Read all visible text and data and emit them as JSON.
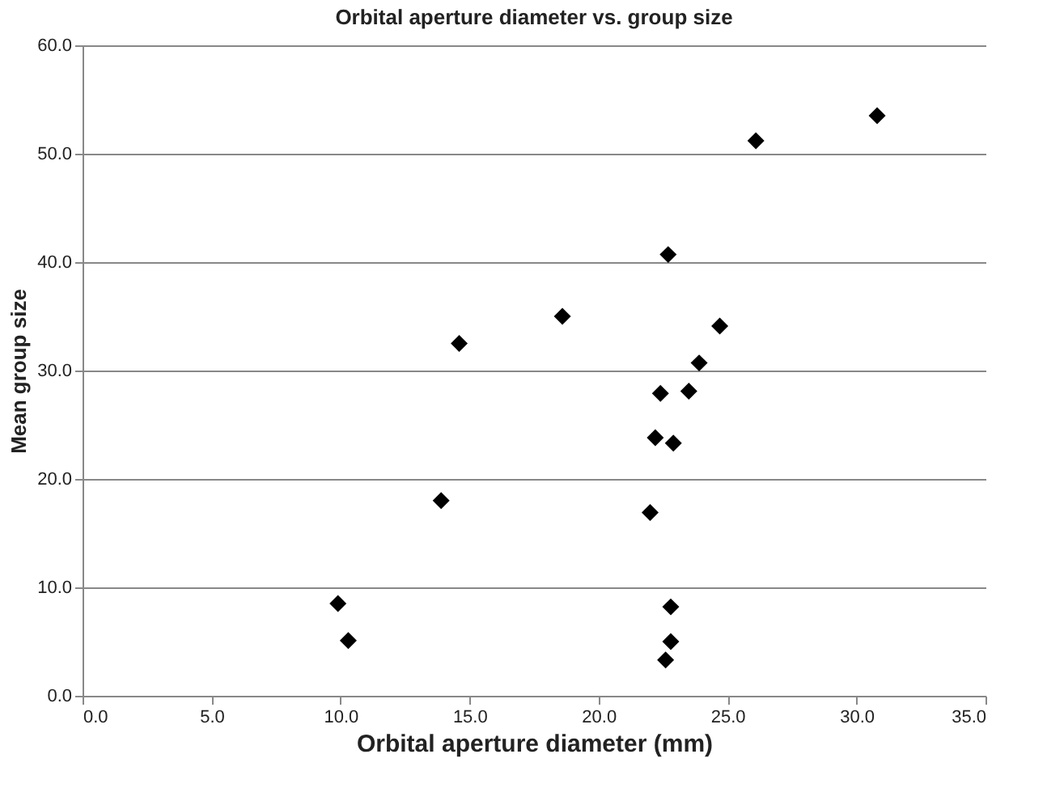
{
  "chart_data": {
    "type": "scatter",
    "title": "Orbital aperture diameter vs. group size",
    "xlabel": "Orbital aperture diameter (mm)",
    "ylabel": "Mean group size",
    "x": [
      9.9,
      10.3,
      13.9,
      14.6,
      18.6,
      22.0,
      22.2,
      22.4,
      22.7,
      22.8,
      22.8,
      22.6,
      22.9,
      23.5,
      23.9,
      24.7,
      26.1,
      30.8
    ],
    "series": [
      {
        "color": "#000000",
        "values": [
          8.5,
          5.1,
          18.0,
          32.5,
          35.0,
          16.9,
          23.8,
          27.9,
          40.7,
          8.2,
          5.0,
          3.3,
          23.3,
          28.1,
          30.7,
          34.1,
          51.2,
          53.5
        ]
      }
    ],
    "xlim": [
      0,
      35
    ],
    "xticks": [
      {
        "value": 0,
        "label": "0.0"
      },
      {
        "value": 5,
        "label": "5.0"
      },
      {
        "value": 10,
        "label": "10.0"
      },
      {
        "value": 15,
        "label": "15.0"
      },
      {
        "value": 20,
        "label": "20.0"
      },
      {
        "value": 25,
        "label": "25.0"
      },
      {
        "value": 30,
        "label": "30.0"
      },
      {
        "value": 35,
        "label": "35.0"
      }
    ],
    "ylim": [
      0,
      60
    ],
    "yticks": [
      {
        "value": 0,
        "label": "0.0"
      },
      {
        "value": 10,
        "label": "10.0"
      },
      {
        "value": 20,
        "label": "20.0"
      },
      {
        "value": 30,
        "label": "30.0"
      },
      {
        "value": 40,
        "label": "40.0"
      },
      {
        "value": 50,
        "label": "50.0"
      },
      {
        "value": 60,
        "label": "60.0"
      }
    ],
    "grid": "y",
    "marker": "diamond",
    "legend": false
  }
}
